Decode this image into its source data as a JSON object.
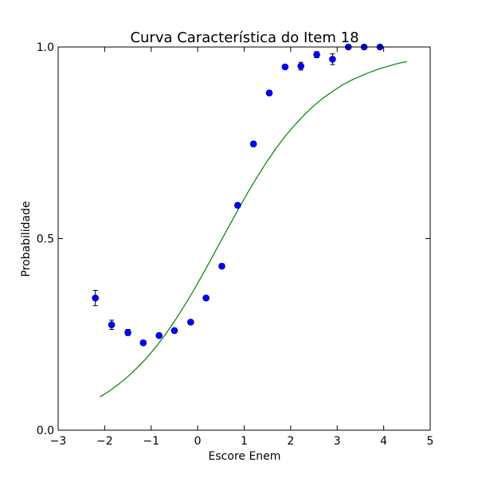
{
  "chart_data": {
    "type": "scatter",
    "title": "Curva Característica do Item 18",
    "xlabel": "Escore Enem",
    "ylabel": "Probabilidade",
    "xlim": [
      -3,
      5
    ],
    "ylim": [
      0,
      1
    ],
    "xticks": [
      -3,
      -2,
      -1,
      0,
      1,
      2,
      3,
      4,
      5
    ],
    "xtick_labels": [
      "−3",
      "−2",
      "−1",
      "0",
      "1",
      "2",
      "3",
      "4",
      "5"
    ],
    "yticks": [
      0,
      0.5,
      1
    ],
    "ytick_labels": [
      "0.0",
      "0.5",
      "1.0"
    ],
    "grid": false,
    "colors": {
      "points": "#0000ff",
      "curve": "#008000",
      "errorbars": "#000000"
    },
    "series": [
      {
        "kind": "errorbar-points",
        "x": [
          -2.2,
          -1.85,
          -1.5,
          -1.17,
          -0.83,
          -0.5,
          -0.15,
          0.18,
          0.52,
          0.86,
          1.2,
          1.54,
          1.88,
          2.22,
          2.56,
          2.9,
          3.24,
          3.58,
          3.92
        ],
        "y": [
          0.345,
          0.275,
          0.255,
          0.228,
          0.247,
          0.26,
          0.282,
          0.345,
          0.428,
          0.587,
          0.747,
          0.88,
          0.948,
          0.95,
          0.98,
          0.968,
          1.0,
          1.0,
          1.0
        ],
        "yerr": [
          0.02,
          0.012,
          0.008,
          0.006,
          0.006,
          0.006,
          0.006,
          0.006,
          0.006,
          0.006,
          0.006,
          0.006,
          0.006,
          0.01,
          0.008,
          0.014,
          0.004,
          0.004,
          0.004
        ]
      },
      {
        "kind": "line",
        "x": [
          -2.1,
          -1.9,
          -1.7,
          -1.5,
          -1.3,
          -1.1,
          -0.9,
          -0.7,
          -0.5,
          -0.3,
          -0.1,
          0.1,
          0.3,
          0.5,
          0.7,
          0.9,
          1.1,
          1.3,
          1.5,
          1.7,
          1.9,
          2.1,
          2.3,
          2.5,
          2.7,
          2.9,
          3.1,
          3.3,
          3.5,
          3.7,
          3.9,
          4.1,
          4.3,
          4.5
        ],
        "y": [
          0.087,
          0.102,
          0.12,
          0.14,
          0.163,
          0.188,
          0.217,
          0.249,
          0.284,
          0.322,
          0.362,
          0.405,
          0.449,
          0.494,
          0.538,
          0.582,
          0.625,
          0.665,
          0.703,
          0.738,
          0.77,
          0.798,
          0.824,
          0.847,
          0.867,
          0.884,
          0.9,
          0.913,
          0.924,
          0.934,
          0.943,
          0.95,
          0.957,
          0.962
        ]
      }
    ]
  }
}
